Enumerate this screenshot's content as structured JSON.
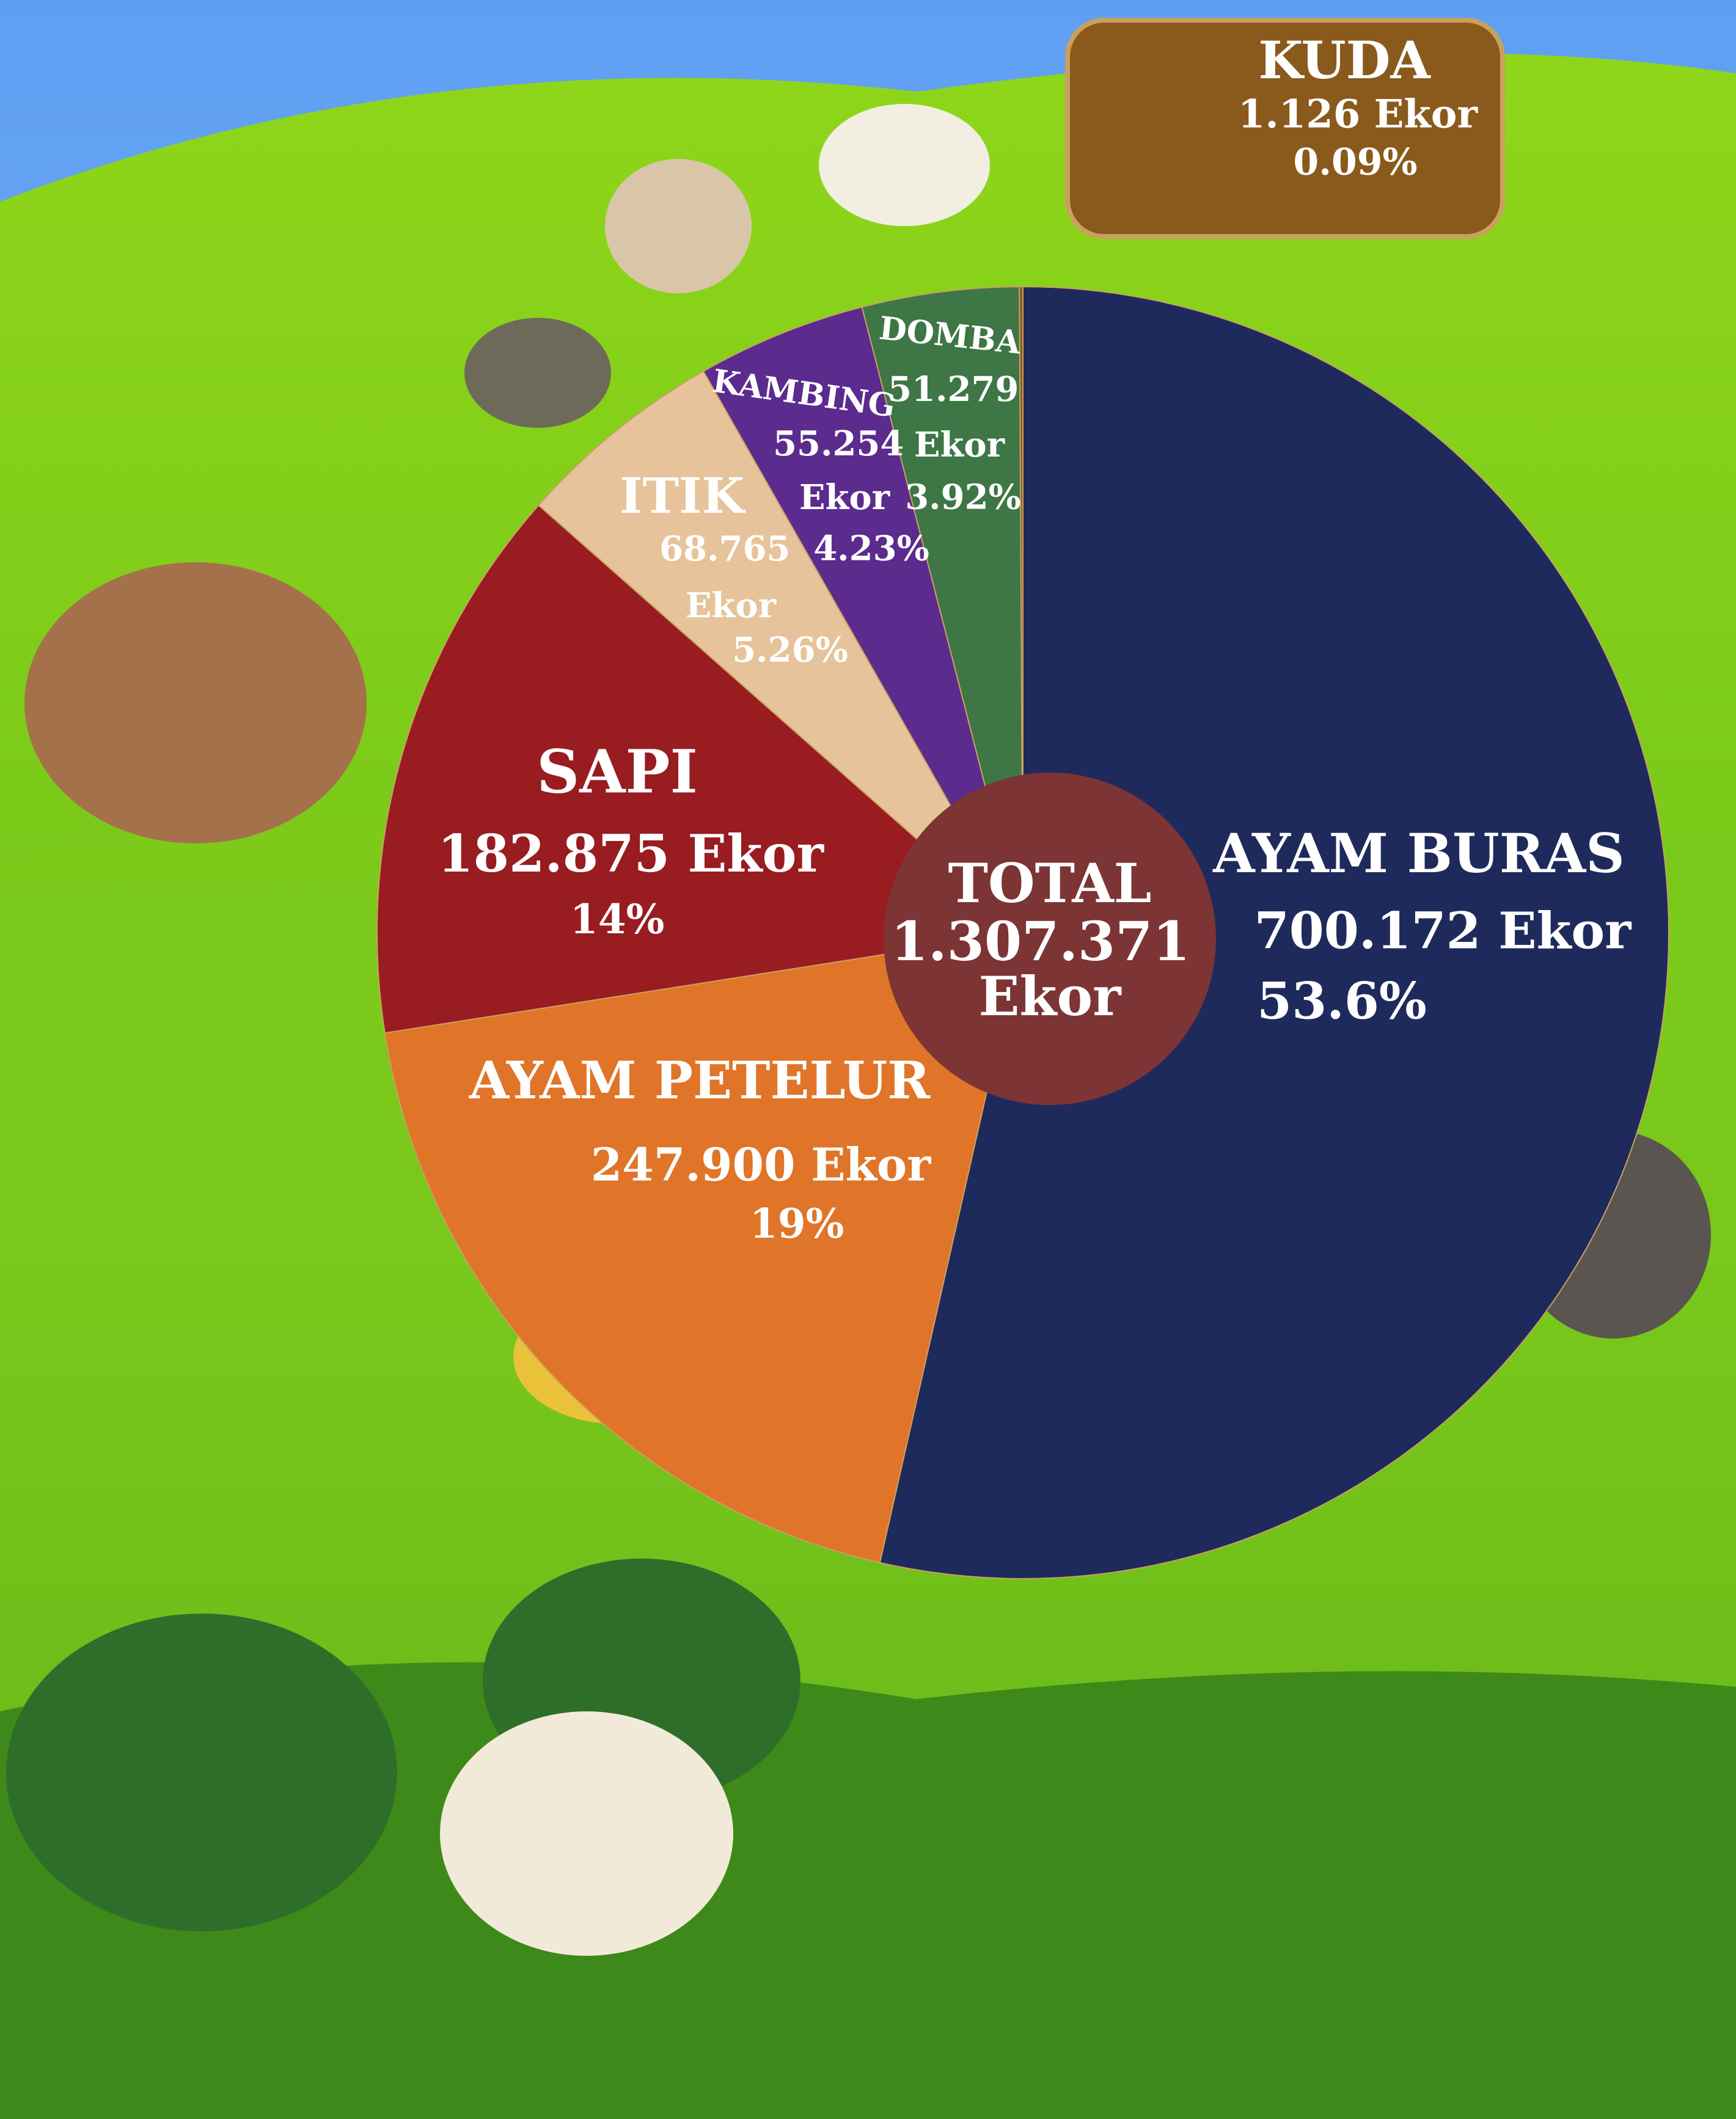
{
  "chart_data": {
    "type": "pie",
    "categories": [
      "AYAM BURAS",
      "AYAM PETELUR",
      "SAPI",
      "ITIK",
      "KAMBING",
      "DOMBA",
      "KUDA"
    ],
    "values": [
      700172,
      247900,
      182875,
      68765,
      55254,
      51279,
      1126
    ],
    "value_labels": [
      "700.172 Ekor",
      "247.900 Ekor",
      "182.875 Ekor",
      "68.765 Ekor",
      "55.254 Ekor",
      "51.279 Ekor",
      "1.126 Ekor"
    ],
    "percent_labels": [
      "53.6%",
      "19%",
      "14%",
      "5.26%",
      "4.23%",
      "3.92%",
      "0.09%"
    ],
    "colors": [
      "#1f2a5c",
      "#e07428",
      "#981c20",
      "#e6c39a",
      "#5b2b8e",
      "#3e7646",
      "#8a5a1c"
    ],
    "center_title": "TOTAL",
    "center_label": "1.307.371 Ekor"
  }
}
